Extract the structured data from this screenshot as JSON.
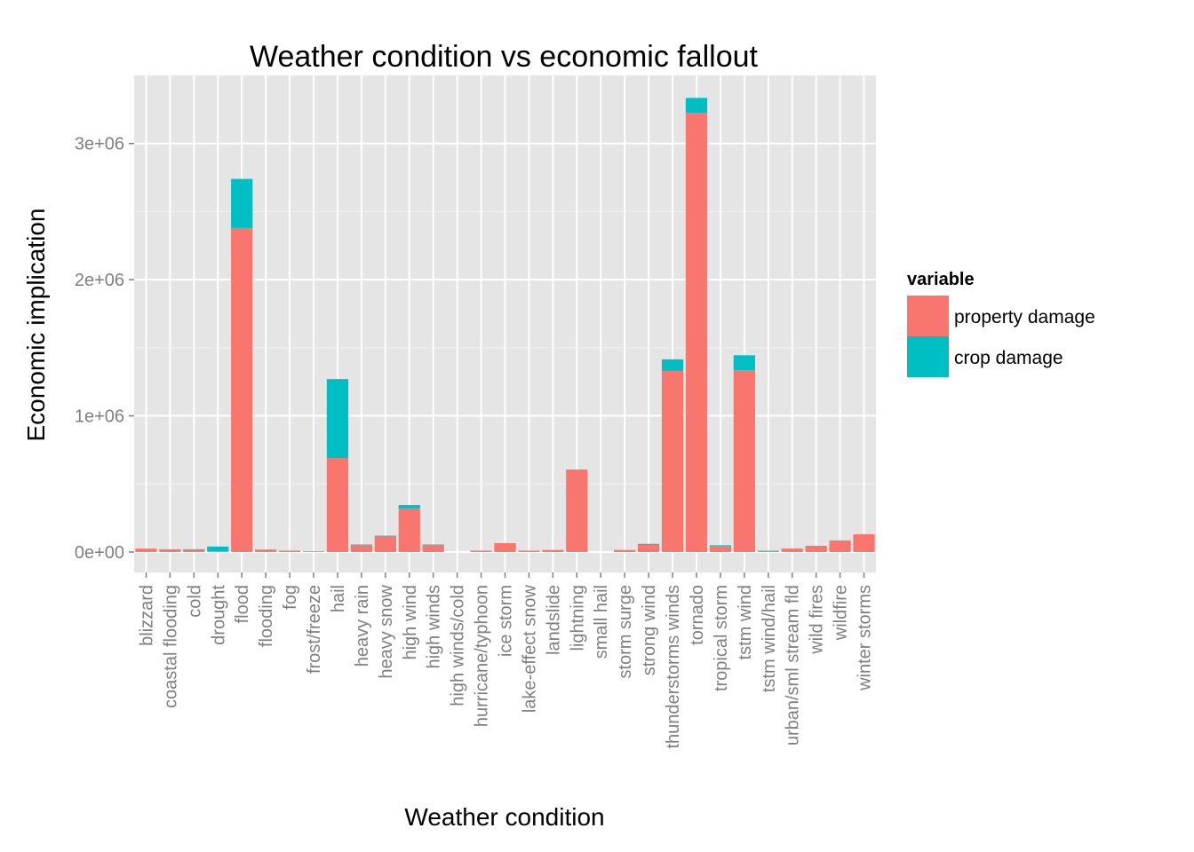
{
  "colors": {
    "panel": "#e5e5e5",
    "grid_major": "#ffffff",
    "grid_minor": "#f2f2f2",
    "tick_label": "#7f7f7f",
    "property": "#f8766d",
    "crop": "#00bfc4"
  },
  "chart_data": {
    "type": "bar",
    "stacked": true,
    "title": "Weather condition vs economic fallout",
    "xlabel": "Weather condition",
    "ylabel": "Economic implication",
    "ylim": [
      -150000,
      3500000
    ],
    "yticks": [
      0,
      1000000,
      2000000,
      3000000
    ],
    "ytick_labels": [
      "0e+00",
      "1e+06",
      "2e+06",
      "3e+06"
    ],
    "grid": true,
    "legend": {
      "title": "variable",
      "position": "right"
    },
    "categories": [
      "blizzard",
      "coastal flooding",
      "cold",
      "drought",
      "flood",
      "flooding",
      "fog",
      "frost/freeze",
      "hail",
      "heavy rain",
      "heavy snow",
      "high wind",
      "high winds",
      "high winds/cold",
      "hurricane/typhoon",
      "ice storm",
      "lake-effect snow",
      "landslide",
      "lightning",
      "small hail",
      "storm surge",
      "strong wind",
      "thunderstorms winds",
      "tornado",
      "tropical storm",
      "tstm wind",
      "tstm wind/hail",
      "urban/sml stream fld",
      "wild fires",
      "wildfire",
      "winter storms"
    ],
    "series": [
      {
        "name": "property damage",
        "values": [
          25000,
          20000,
          15000,
          5000,
          2380000,
          15000,
          10000,
          3000,
          690000,
          50000,
          115000,
          320000,
          50000,
          0,
          10000,
          65000,
          10000,
          15000,
          600000,
          0,
          15000,
          55000,
          1330000,
          3225000,
          45000,
          1335000,
          8000,
          25000,
          40000,
          85000,
          130000
        ]
      },
      {
        "name": "crop damage",
        "values": [
          0,
          0,
          5000,
          35000,
          360000,
          3000,
          0,
          2000,
          580000,
          5000,
          5000,
          25000,
          5000,
          0,
          0,
          0,
          0,
          0,
          5000,
          0,
          0,
          5000,
          85000,
          110000,
          5000,
          110000,
          2000,
          0,
          5000,
          0,
          0
        ]
      }
    ]
  }
}
